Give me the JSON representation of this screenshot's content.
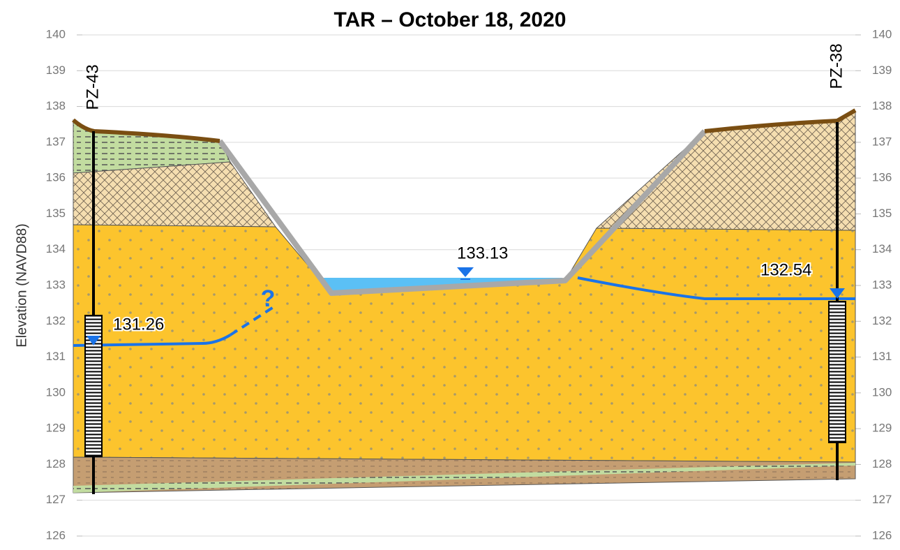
{
  "title": "TAR – October 18, 2020",
  "y_axis": {
    "label": "Elevation (NAVD88)",
    "ticks": [
      140,
      139,
      138,
      137,
      136,
      135,
      134,
      133,
      132,
      131,
      130,
      129,
      128,
      127,
      126
    ]
  },
  "wells": [
    {
      "label": "PZ-43"
    },
    {
      "label": "PZ-38"
    }
  ],
  "water_levels": [
    {
      "label": "131.26"
    },
    {
      "label": "133.13"
    },
    {
      "label": "132.54"
    }
  ],
  "annotation": "?"
}
